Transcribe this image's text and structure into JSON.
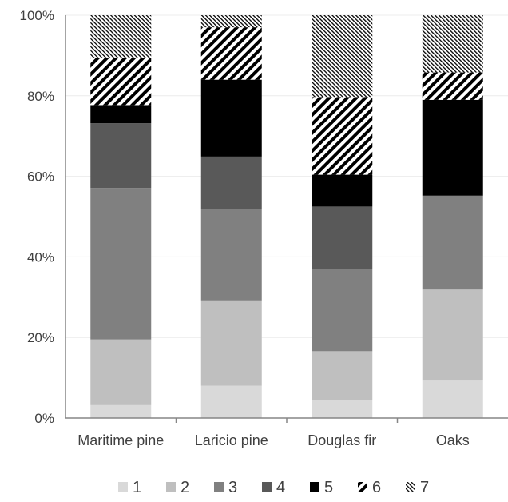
{
  "chart_data": {
    "type": "bar",
    "stacked": true,
    "percent": true,
    "title": "",
    "xlabel": "",
    "ylabel": "",
    "ylim": [
      0,
      100
    ],
    "grid": true,
    "legend_position": "bottom",
    "categories": [
      "Maritime pine",
      "Laricio pine",
      "Douglas fir",
      "Oaks"
    ],
    "yticks": [
      "0%",
      "20%",
      "40%",
      "60%",
      "80%",
      "100%"
    ],
    "series": [
      {
        "name": "1",
        "values": [
          3.2,
          8.0,
          4.4,
          9.3
        ],
        "color": "#d9d9d9",
        "pattern": "solid"
      },
      {
        "name": "2",
        "values": [
          16.3,
          21.2,
          12.2,
          22.6
        ],
        "color": "#bfbfbf",
        "pattern": "solid"
      },
      {
        "name": "3",
        "values": [
          37.6,
          22.6,
          20.5,
          23.3
        ],
        "color": "#808080",
        "pattern": "solid"
      },
      {
        "name": "4",
        "values": [
          16.1,
          13.1,
          15.4,
          0
        ],
        "color": "#595959",
        "pattern": "solid"
      },
      {
        "name": "5",
        "values": [
          4.5,
          19.1,
          7.9,
          23.8
        ],
        "color": "#000000",
        "pattern": "solid"
      },
      {
        "name": "6",
        "values": [
          11.7,
          13.0,
          19.3,
          6.8
        ],
        "color": "#000000",
        "pattern": "wide-diagonal"
      },
      {
        "name": "7",
        "values": [
          10.6,
          3.0,
          20.3,
          14.2
        ],
        "color": "#000000",
        "pattern": "dense-diagonal"
      }
    ]
  }
}
